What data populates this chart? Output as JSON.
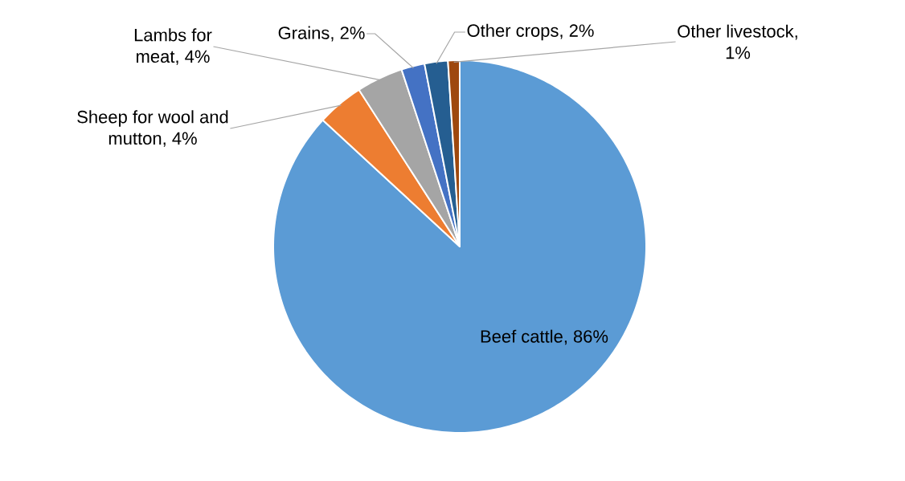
{
  "chart_data": {
    "type": "pie",
    "categories": [
      "Beef cattle, 86%",
      "Sheep for wool and mutton, 4%",
      "Lambs for meat, 4%",
      "Grains, 2%",
      "Other crops, 2%",
      "Other livestock, 1%"
    ],
    "values": [
      86,
      4,
      4,
      2,
      2,
      1
    ],
    "colors": [
      "#5b9bd5",
      "#ed7d31",
      "#a5a5a5",
      "#4472c4",
      "#255e91",
      "#9e480e"
    ]
  }
}
